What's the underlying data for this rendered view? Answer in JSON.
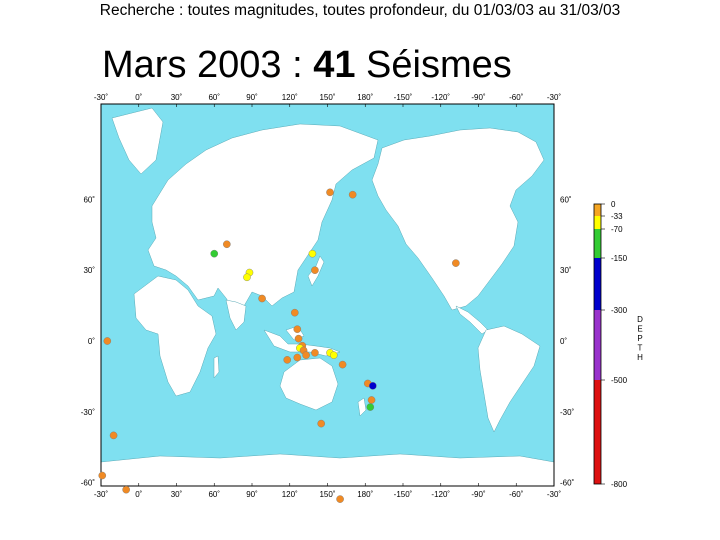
{
  "header": {
    "text": "Recherche : toutes magnitudes, toutes profondeur, du 01/03/03 au 31/03/03"
  },
  "title": {
    "prefix": "Mars 2003 : ",
    "count": "41",
    "suffix": " Séismes"
  },
  "map": {
    "ocean_color": "#7fe0f0",
    "land_color": "#ffffff",
    "lon_labels": [
      "-30˚",
      "0˚",
      "30˚",
      "60˚",
      "90˚",
      "120˚",
      "150˚",
      "180˚",
      "-150˚",
      "-120˚",
      "-90˚",
      "-60˚",
      "-30˚"
    ],
    "lat_labels": [
      "60˚",
      "30˚",
      "0˚",
      "-30˚",
      "-60˚"
    ],
    "lat_values": [
      60,
      30,
      0,
      -30,
      -60
    ]
  },
  "depth_scale": {
    "label": "DEPTH",
    "ticks": [
      "0",
      "-33",
      "-70",
      "-150",
      "-300",
      "-500",
      "-800"
    ],
    "bands": [
      {
        "from": 0,
        "to": 33,
        "color": "#f5a623"
      },
      {
        "from": 33,
        "to": 70,
        "color": "#ffff00"
      },
      {
        "from": 70,
        "to": 150,
        "color": "#33cc33"
      },
      {
        "from": 150,
        "to": 300,
        "color": "#0000cc"
      },
      {
        "from": 300,
        "to": 500,
        "color": "#9933cc"
      },
      {
        "from": 500,
        "to": 800,
        "color": "#dd1111"
      }
    ]
  },
  "events": [
    {
      "lon": 152,
      "lat": 63,
      "color": "#f08a24"
    },
    {
      "lon": 170,
      "lat": 62,
      "color": "#f08a24"
    },
    {
      "lon": 70,
      "lat": 41,
      "color": "#f08a24"
    },
    {
      "lon": 60,
      "lat": 37,
      "color": "#33cc33"
    },
    {
      "lon": 88,
      "lat": 29,
      "color": "#ffff00"
    },
    {
      "lon": 86,
      "lat": 27,
      "color": "#ffff00"
    },
    {
      "lon": 138,
      "lat": 37,
      "color": "#ffff00"
    },
    {
      "lon": 140,
      "lat": 30,
      "color": "#f08a24"
    },
    {
      "lon": 98,
      "lat": 18,
      "color": "#f08a24"
    },
    {
      "lon": 124,
      "lat": 12,
      "color": "#f08a24"
    },
    {
      "lon": 126,
      "lat": 5,
      "color": "#f08a24"
    },
    {
      "lon": 127,
      "lat": 1,
      "color": "#f08a24"
    },
    {
      "lon": 130,
      "lat": -2,
      "color": "#f08a24"
    },
    {
      "lon": 128,
      "lat": -3,
      "color": "#ffff00"
    },
    {
      "lon": 131,
      "lat": -4,
      "color": "#f08a24"
    },
    {
      "lon": 133,
      "lat": -6,
      "color": "#f08a24"
    },
    {
      "lon": 126,
      "lat": -7,
      "color": "#f08a24"
    },
    {
      "lon": 118,
      "lat": -8,
      "color": "#f08a24"
    },
    {
      "lon": 140,
      "lat": -5,
      "color": "#f08a24"
    },
    {
      "lon": 152,
      "lat": -5,
      "color": "#ffff00"
    },
    {
      "lon": 155,
      "lat": -6,
      "color": "#ffff00"
    },
    {
      "lon": 162,
      "lat": -10,
      "color": "#f08a24"
    },
    {
      "lon": 182,
      "lat": -18,
      "color": "#f08a24"
    },
    {
      "lon": 186,
      "lat": -19,
      "color": "#0000cc"
    },
    {
      "lon": 185,
      "lat": -25,
      "color": "#f08a24"
    },
    {
      "lon": 184,
      "lat": -28,
      "color": "#33cc33"
    },
    {
      "lon": 145,
      "lat": -35,
      "color": "#f08a24"
    },
    {
      "lon": -108,
      "lat": 33,
      "color": "#f08a24"
    },
    {
      "lon": -25,
      "lat": 0,
      "color": "#f08a24"
    },
    {
      "lon": -20,
      "lat": -40,
      "color": "#f08a24"
    },
    {
      "lon": -29,
      "lat": -57,
      "color": "#f08a24"
    },
    {
      "lon": -10,
      "lat": -63,
      "color": "#f08a24"
    },
    {
      "lon": 160,
      "lat": -67,
      "color": "#f08a24"
    }
  ]
}
